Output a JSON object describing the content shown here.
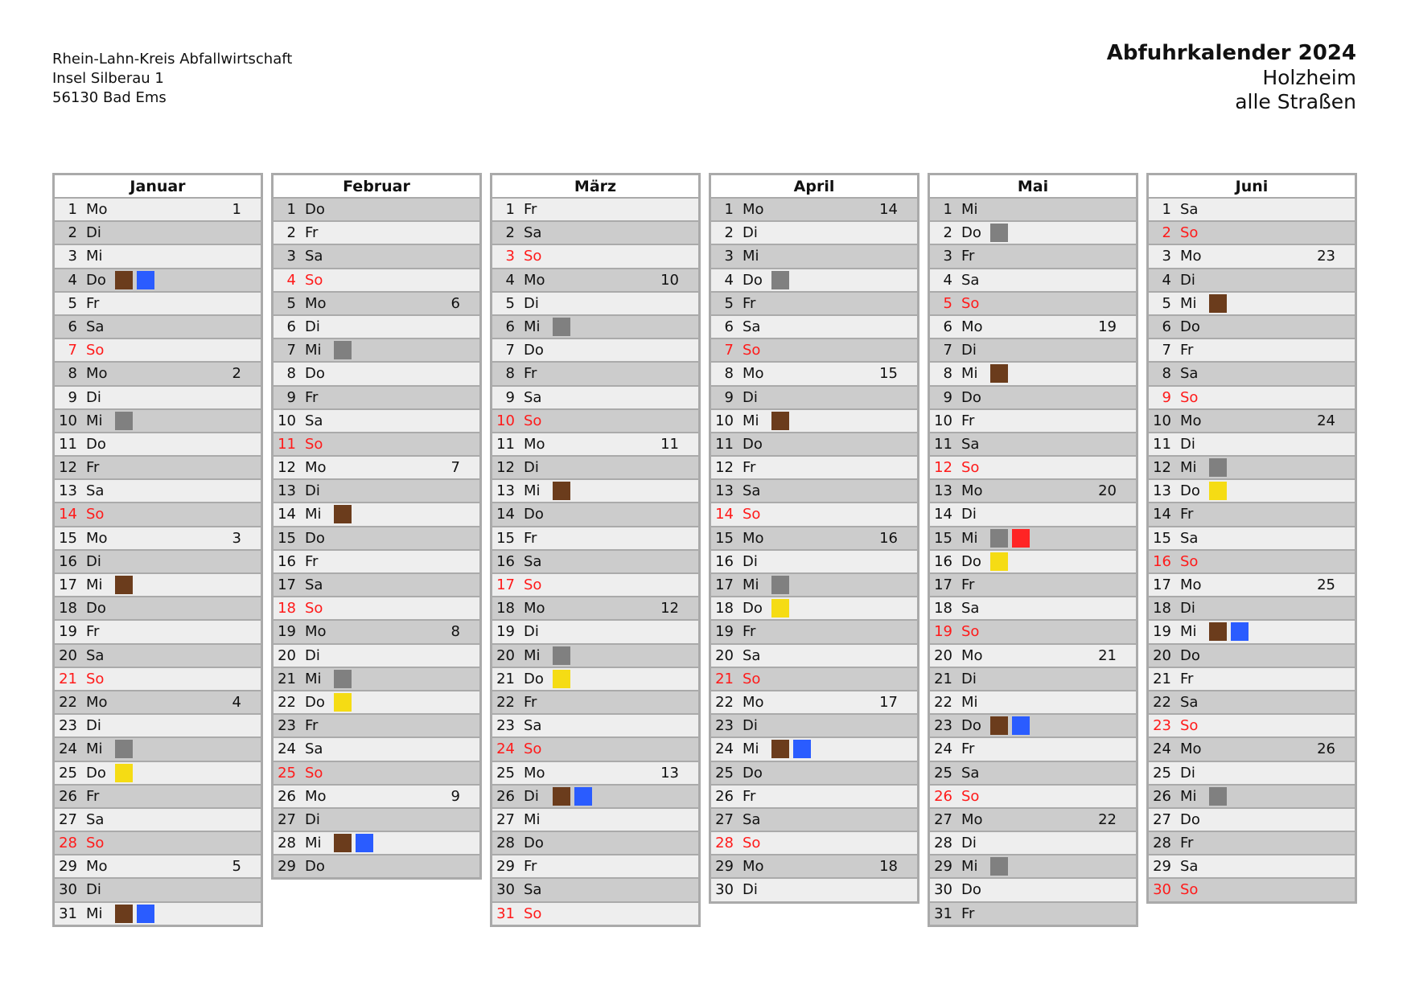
{
  "sender": {
    "line1": "Rhein-Lahn-Kreis Abfallwirtschaft",
    "line2": "Insel Silberau 1",
    "line3": "56130 Bad Ems"
  },
  "header": {
    "title": "Abfuhrkalender 2024",
    "place": "Holzheim",
    "streets": "alle Straßen"
  },
  "colors": {
    "brown": "#6b3c1c",
    "blue": "#2a5cff",
    "grey": "#808080",
    "yellow": "#f5dc14",
    "red": "#ff2424",
    "sunday_text": "#ff1a1a"
  },
  "months": [
    {
      "name": "Januar",
      "days": [
        [
          "1",
          "Mo",
          "1",
          []
        ],
        [
          "2",
          "Di",
          "",
          []
        ],
        [
          "3",
          "Mi",
          "",
          []
        ],
        [
          "4",
          "Do",
          "",
          [
            "brown",
            "blue"
          ]
        ],
        [
          "5",
          "Fr",
          "",
          []
        ],
        [
          "6",
          "Sa",
          "",
          []
        ],
        [
          "7",
          "So",
          "",
          []
        ],
        [
          "8",
          "Mo",
          "2",
          []
        ],
        [
          "9",
          "Di",
          "",
          []
        ],
        [
          "10",
          "Mi",
          "",
          [
            "grey"
          ]
        ],
        [
          "11",
          "Do",
          "",
          []
        ],
        [
          "12",
          "Fr",
          "",
          []
        ],
        [
          "13",
          "Sa",
          "",
          []
        ],
        [
          "14",
          "So",
          "",
          []
        ],
        [
          "15",
          "Mo",
          "3",
          []
        ],
        [
          "16",
          "Di",
          "",
          []
        ],
        [
          "17",
          "Mi",
          "",
          [
            "brown"
          ]
        ],
        [
          "18",
          "Do",
          "",
          []
        ],
        [
          "19",
          "Fr",
          "",
          []
        ],
        [
          "20",
          "Sa",
          "",
          []
        ],
        [
          "21",
          "So",
          "",
          []
        ],
        [
          "22",
          "Mo",
          "4",
          []
        ],
        [
          "23",
          "Di",
          "",
          []
        ],
        [
          "24",
          "Mi",
          "",
          [
            "grey"
          ]
        ],
        [
          "25",
          "Do",
          "",
          [
            "yellow"
          ]
        ],
        [
          "26",
          "Fr",
          "",
          []
        ],
        [
          "27",
          "Sa",
          "",
          []
        ],
        [
          "28",
          "So",
          "",
          []
        ],
        [
          "29",
          "Mo",
          "5",
          []
        ],
        [
          "30",
          "Di",
          "",
          []
        ],
        [
          "31",
          "Mi",
          "",
          [
            "brown",
            "blue"
          ]
        ]
      ]
    },
    {
      "name": "Februar",
      "days": [
        [
          "1",
          "Do",
          "",
          []
        ],
        [
          "2",
          "Fr",
          "",
          []
        ],
        [
          "3",
          "Sa",
          "",
          []
        ],
        [
          "4",
          "So",
          "",
          []
        ],
        [
          "5",
          "Mo",
          "6",
          []
        ],
        [
          "6",
          "Di",
          "",
          []
        ],
        [
          "7",
          "Mi",
          "",
          [
            "grey"
          ]
        ],
        [
          "8",
          "Do",
          "",
          []
        ],
        [
          "9",
          "Fr",
          "",
          []
        ],
        [
          "10",
          "Sa",
          "",
          []
        ],
        [
          "11",
          "So",
          "",
          []
        ],
        [
          "12",
          "Mo",
          "7",
          []
        ],
        [
          "13",
          "Di",
          "",
          []
        ],
        [
          "14",
          "Mi",
          "",
          [
            "brown"
          ]
        ],
        [
          "15",
          "Do",
          "",
          []
        ],
        [
          "16",
          "Fr",
          "",
          []
        ],
        [
          "17",
          "Sa",
          "",
          []
        ],
        [
          "18",
          "So",
          "",
          []
        ],
        [
          "19",
          "Mo",
          "8",
          []
        ],
        [
          "20",
          "Di",
          "",
          []
        ],
        [
          "21",
          "Mi",
          "",
          [
            "grey"
          ]
        ],
        [
          "22",
          "Do",
          "",
          [
            "yellow"
          ]
        ],
        [
          "23",
          "Fr",
          "",
          []
        ],
        [
          "24",
          "Sa",
          "",
          []
        ],
        [
          "25",
          "So",
          "",
          []
        ],
        [
          "26",
          "Mo",
          "9",
          []
        ],
        [
          "27",
          "Di",
          "",
          []
        ],
        [
          "28",
          "Mi",
          "",
          [
            "brown",
            "blue"
          ]
        ],
        [
          "29",
          "Do",
          "",
          []
        ]
      ]
    },
    {
      "name": "März",
      "days": [
        [
          "1",
          "Fr",
          "",
          []
        ],
        [
          "2",
          "Sa",
          "",
          []
        ],
        [
          "3",
          "So",
          "",
          []
        ],
        [
          "4",
          "Mo",
          "10",
          []
        ],
        [
          "5",
          "Di",
          "",
          []
        ],
        [
          "6",
          "Mi",
          "",
          [
            "grey"
          ]
        ],
        [
          "7",
          "Do",
          "",
          []
        ],
        [
          "8",
          "Fr",
          "",
          []
        ],
        [
          "9",
          "Sa",
          "",
          []
        ],
        [
          "10",
          "So",
          "",
          []
        ],
        [
          "11",
          "Mo",
          "11",
          []
        ],
        [
          "12",
          "Di",
          "",
          []
        ],
        [
          "13",
          "Mi",
          "",
          [
            "brown"
          ]
        ],
        [
          "14",
          "Do",
          "",
          []
        ],
        [
          "15",
          "Fr",
          "",
          []
        ],
        [
          "16",
          "Sa",
          "",
          []
        ],
        [
          "17",
          "So",
          "",
          []
        ],
        [
          "18",
          "Mo",
          "12",
          []
        ],
        [
          "19",
          "Di",
          "",
          []
        ],
        [
          "20",
          "Mi",
          "",
          [
            "grey"
          ]
        ],
        [
          "21",
          "Do",
          "",
          [
            "yellow"
          ]
        ],
        [
          "22",
          "Fr",
          "",
          []
        ],
        [
          "23",
          "Sa",
          "",
          []
        ],
        [
          "24",
          "So",
          "",
          []
        ],
        [
          "25",
          "Mo",
          "13",
          []
        ],
        [
          "26",
          "Di",
          "",
          [
            "brown",
            "blue"
          ]
        ],
        [
          "27",
          "Mi",
          "",
          []
        ],
        [
          "28",
          "Do",
          "",
          []
        ],
        [
          "29",
          "Fr",
          "",
          []
        ],
        [
          "30",
          "Sa",
          "",
          []
        ],
        [
          "31",
          "So",
          "",
          []
        ]
      ]
    },
    {
      "name": "April",
      "days": [
        [
          "1",
          "Mo",
          "14",
          []
        ],
        [
          "2",
          "Di",
          "",
          []
        ],
        [
          "3",
          "Mi",
          "",
          []
        ],
        [
          "4",
          "Do",
          "",
          [
            "grey"
          ]
        ],
        [
          "5",
          "Fr",
          "",
          []
        ],
        [
          "6",
          "Sa",
          "",
          []
        ],
        [
          "7",
          "So",
          "",
          []
        ],
        [
          "8",
          "Mo",
          "15",
          []
        ],
        [
          "9",
          "Di",
          "",
          []
        ],
        [
          "10",
          "Mi",
          "",
          [
            "brown"
          ]
        ],
        [
          "11",
          "Do",
          "",
          []
        ],
        [
          "12",
          "Fr",
          "",
          []
        ],
        [
          "13",
          "Sa",
          "",
          []
        ],
        [
          "14",
          "So",
          "",
          []
        ],
        [
          "15",
          "Mo",
          "16",
          []
        ],
        [
          "16",
          "Di",
          "",
          []
        ],
        [
          "17",
          "Mi",
          "",
          [
            "grey"
          ]
        ],
        [
          "18",
          "Do",
          "",
          [
            "yellow"
          ]
        ],
        [
          "19",
          "Fr",
          "",
          []
        ],
        [
          "20",
          "Sa",
          "",
          []
        ],
        [
          "21",
          "So",
          "",
          []
        ],
        [
          "22",
          "Mo",
          "17",
          []
        ],
        [
          "23",
          "Di",
          "",
          []
        ],
        [
          "24",
          "Mi",
          "",
          [
            "brown",
            "blue"
          ]
        ],
        [
          "25",
          "Do",
          "",
          []
        ],
        [
          "26",
          "Fr",
          "",
          []
        ],
        [
          "27",
          "Sa",
          "",
          []
        ],
        [
          "28",
          "So",
          "",
          []
        ],
        [
          "29",
          "Mo",
          "18",
          []
        ],
        [
          "30",
          "Di",
          "",
          []
        ]
      ]
    },
    {
      "name": "Mai",
      "days": [
        [
          "1",
          "Mi",
          "",
          []
        ],
        [
          "2",
          "Do",
          "",
          [
            "grey"
          ]
        ],
        [
          "3",
          "Fr",
          "",
          []
        ],
        [
          "4",
          "Sa",
          "",
          []
        ],
        [
          "5",
          "So",
          "",
          []
        ],
        [
          "6",
          "Mo",
          "19",
          []
        ],
        [
          "7",
          "Di",
          "",
          []
        ],
        [
          "8",
          "Mi",
          "",
          [
            "brown"
          ]
        ],
        [
          "9",
          "Do",
          "",
          []
        ],
        [
          "10",
          "Fr",
          "",
          []
        ],
        [
          "11",
          "Sa",
          "",
          []
        ],
        [
          "12",
          "So",
          "",
          []
        ],
        [
          "13",
          "Mo",
          "20",
          []
        ],
        [
          "14",
          "Di",
          "",
          []
        ],
        [
          "15",
          "Mi",
          "",
          [
            "grey",
            "red"
          ]
        ],
        [
          "16",
          "Do",
          "",
          [
            "yellow"
          ]
        ],
        [
          "17",
          "Fr",
          "",
          []
        ],
        [
          "18",
          "Sa",
          "",
          []
        ],
        [
          "19",
          "So",
          "",
          []
        ],
        [
          "20",
          "Mo",
          "21",
          []
        ],
        [
          "21",
          "Di",
          "",
          []
        ],
        [
          "22",
          "Mi",
          "",
          []
        ],
        [
          "23",
          "Do",
          "",
          [
            "brown",
            "blue"
          ]
        ],
        [
          "24",
          "Fr",
          "",
          []
        ],
        [
          "25",
          "Sa",
          "",
          []
        ],
        [
          "26",
          "So",
          "",
          []
        ],
        [
          "27",
          "Mo",
          "22",
          []
        ],
        [
          "28",
          "Di",
          "",
          []
        ],
        [
          "29",
          "Mi",
          "",
          [
            "grey"
          ]
        ],
        [
          "30",
          "Do",
          "",
          []
        ],
        [
          "31",
          "Fr",
          "",
          []
        ]
      ]
    },
    {
      "name": "Juni",
      "days": [
        [
          "1",
          "Sa",
          "",
          []
        ],
        [
          "2",
          "So",
          "",
          []
        ],
        [
          "3",
          "Mo",
          "23",
          []
        ],
        [
          "4",
          "Di",
          "",
          []
        ],
        [
          "5",
          "Mi",
          "",
          [
            "brown"
          ]
        ],
        [
          "6",
          "Do",
          "",
          []
        ],
        [
          "7",
          "Fr",
          "",
          []
        ],
        [
          "8",
          "Sa",
          "",
          []
        ],
        [
          "9",
          "So",
          "",
          []
        ],
        [
          "10",
          "Mo",
          "24",
          []
        ],
        [
          "11",
          "Di",
          "",
          []
        ],
        [
          "12",
          "Mi",
          "",
          [
            "grey"
          ]
        ],
        [
          "13",
          "Do",
          "",
          [
            "yellow"
          ]
        ],
        [
          "14",
          "Fr",
          "",
          []
        ],
        [
          "15",
          "Sa",
          "",
          []
        ],
        [
          "16",
          "So",
          "",
          []
        ],
        [
          "17",
          "Mo",
          "25",
          []
        ],
        [
          "18",
          "Di",
          "",
          []
        ],
        [
          "19",
          "Mi",
          "",
          [
            "brown",
            "blue"
          ]
        ],
        [
          "20",
          "Do",
          "",
          []
        ],
        [
          "21",
          "Fr",
          "",
          []
        ],
        [
          "22",
          "Sa",
          "",
          []
        ],
        [
          "23",
          "So",
          "",
          []
        ],
        [
          "24",
          "Mo",
          "26",
          []
        ],
        [
          "25",
          "Di",
          "",
          []
        ],
        [
          "26",
          "Mi",
          "",
          [
            "grey"
          ]
        ],
        [
          "27",
          "Do",
          "",
          []
        ],
        [
          "28",
          "Fr",
          "",
          []
        ],
        [
          "29",
          "Sa",
          "",
          []
        ],
        [
          "30",
          "So",
          "",
          []
        ]
      ]
    }
  ]
}
